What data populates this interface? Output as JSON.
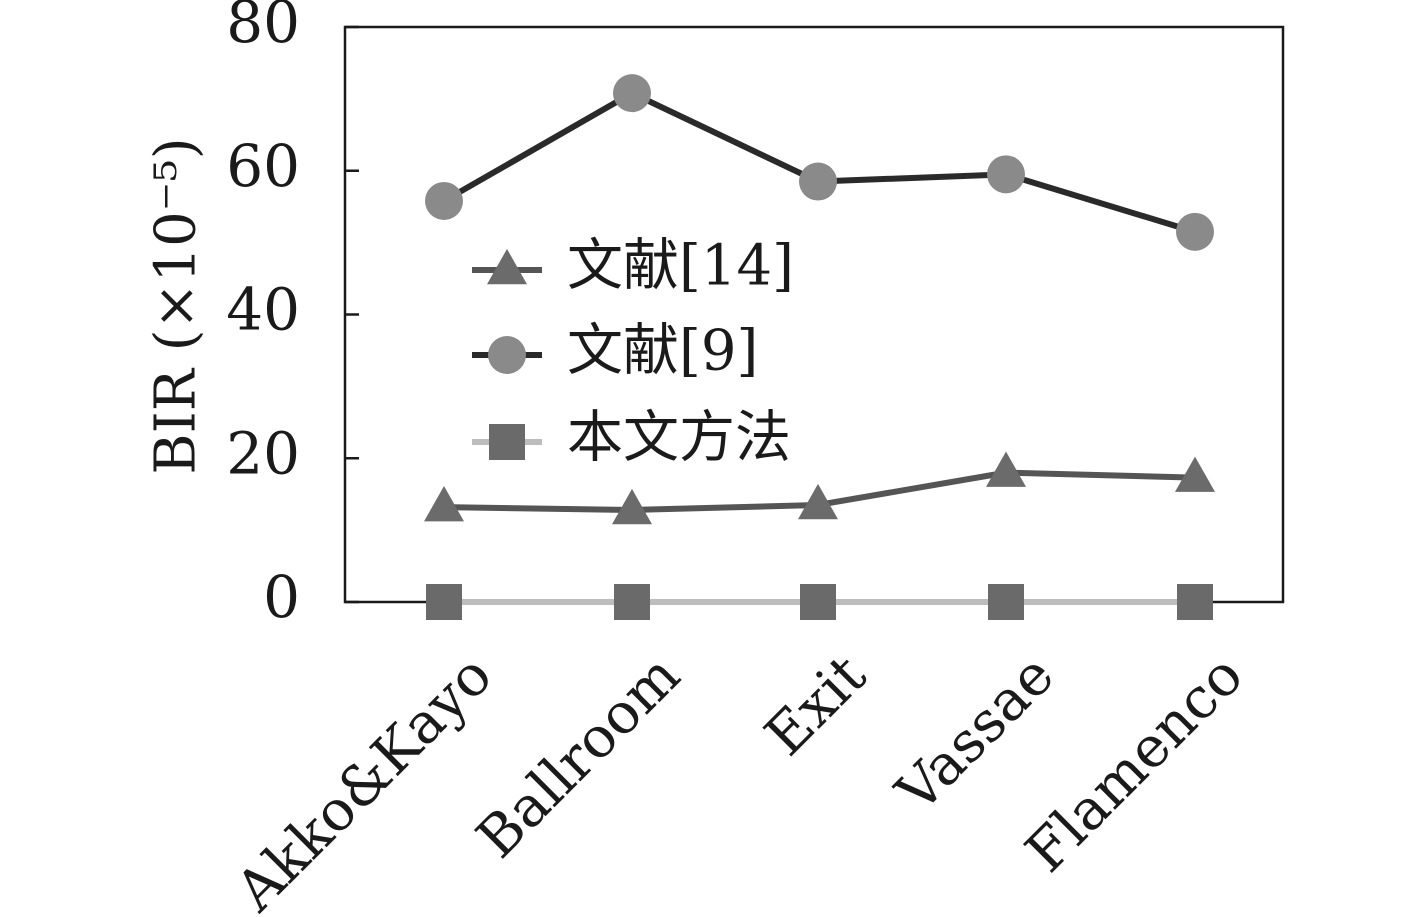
{
  "chart_data": {
    "type": "line",
    "ylabel": "BIR (×10⁻⁵)",
    "xlabel": "",
    "ylim": [
      0,
      80
    ],
    "yticks": [
      0,
      20,
      40,
      60,
      80
    ],
    "categories": [
      "Akko&Kayo",
      "Ballroom",
      "Exit",
      "Vassae",
      "Flamenco"
    ],
    "grid": false,
    "legend_position": "center-left",
    "series": [
      {
        "name": "文献[14]",
        "marker": "triangle",
        "line_color": "#555555",
        "marker_color": "#6b6b6b",
        "values": [
          13.2,
          12.8,
          13.5,
          18.0,
          17.3
        ]
      },
      {
        "name": "文献[9]",
        "marker": "circle",
        "line_color": "#2a2a2a",
        "marker_color": "#8a8a8a",
        "values": [
          55.8,
          70.8,
          58.5,
          59.5,
          51.5
        ]
      },
      {
        "name": "本文方法",
        "marker": "square",
        "line_color": "#bdbdbd",
        "marker_color": "#6a6a6a",
        "values": [
          0,
          0,
          0,
          0,
          0
        ]
      }
    ]
  }
}
